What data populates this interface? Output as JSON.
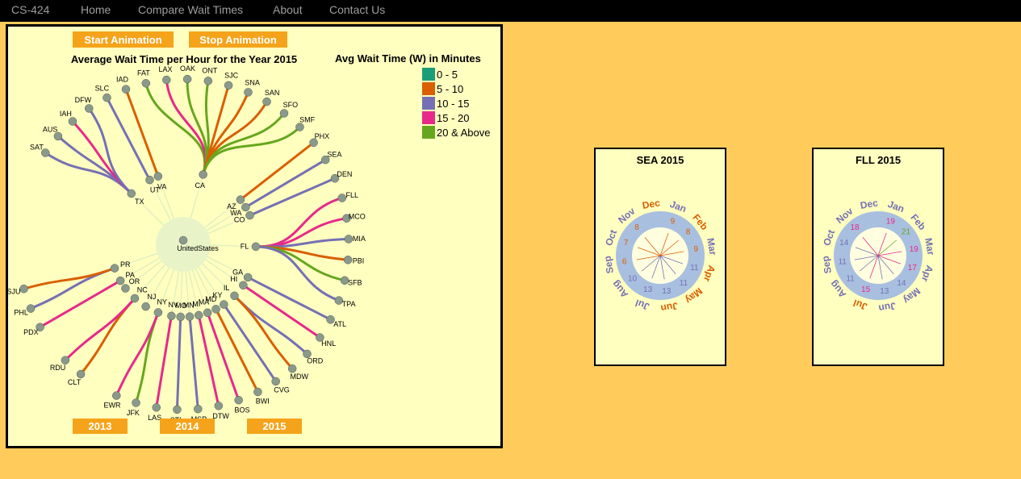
{
  "nav": {
    "brand": "CS-424",
    "items": [
      "Home",
      "Compare Wait Times",
      "About",
      "Contact Us"
    ]
  },
  "controls": {
    "start_label": "Start Animation",
    "stop_label": "Stop Animation",
    "years": [
      "2013",
      "2014",
      "2015"
    ]
  },
  "chart_title": "Average Wait Time per Hour for the Year 2015",
  "legend": {
    "title": "Avg Wait Time (W) in Minutes",
    "items": [
      {
        "label": "0 - 5",
        "color": "#1b9e77"
      },
      {
        "label": "5 - 10",
        "color": "#d95f02"
      },
      {
        "label": "10 - 15",
        "color": "#7570b3"
      },
      {
        "label": "15 - 20",
        "color": "#e7298a"
      },
      {
        "label": "20 & Above",
        "color": "#66a61e"
      }
    ]
  },
  "root_label": "UnitedStates",
  "states": [
    {
      "name": "TX",
      "airports": [
        [
          "SAT",
          2
        ],
        [
          "AUS",
          2
        ],
        [
          "IAH",
          3
        ],
        [
          "DFW",
          2
        ]
      ]
    },
    {
      "name": "UT",
      "airports": [
        [
          "SLC",
          2
        ]
      ]
    },
    {
      "name": "VA",
      "airports": [
        [
          "IAD",
          1
        ]
      ]
    },
    {
      "name": "CA",
      "airports": [
        [
          "FAT",
          4
        ],
        [
          "LAX",
          3
        ],
        [
          "OAK",
          4
        ],
        [
          "ONT",
          4
        ],
        [
          "SJC",
          1
        ],
        [
          "SNA",
          1
        ],
        [
          "SAN",
          1
        ],
        [
          "SFO",
          4
        ],
        [
          "SMF",
          4
        ]
      ]
    },
    {
      "name": "AZ",
      "airports": [
        [
          "PHX",
          1
        ]
      ]
    },
    {
      "name": "WA",
      "airports": [
        [
          "SEA",
          2
        ]
      ]
    },
    {
      "name": "CO",
      "airports": [
        [
          "DEN",
          2
        ]
      ]
    },
    {
      "name": "FL",
      "airports": [
        [
          "FLL",
          3
        ],
        [
          "MCO",
          3
        ],
        [
          "MIA",
          2
        ],
        [
          "PBI",
          1
        ],
        [
          "SFB",
          4
        ],
        [
          "TPA",
          2
        ]
      ]
    },
    {
      "name": "GA",
      "airports": [
        [
          "ATL",
          2
        ]
      ]
    },
    {
      "name": "HI",
      "airports": [
        [
          "HNL",
          3
        ]
      ]
    },
    {
      "name": "IL",
      "airports": [
        [
          "ORD",
          2
        ],
        [
          "MDW",
          1
        ]
      ]
    },
    {
      "name": "KY",
      "airports": [
        [
          "CVG",
          2
        ]
      ]
    },
    {
      "name": "MD",
      "airports": [
        [
          "BWI",
          1
        ]
      ]
    },
    {
      "name": "MA",
      "airports": [
        [
          "BOS",
          3
        ]
      ]
    },
    {
      "name": "MI",
      "airports": [
        [
          "DTW",
          3
        ]
      ]
    },
    {
      "name": "MN",
      "airports": [
        [
          "MSP",
          2
        ]
      ]
    },
    {
      "name": "MO",
      "airports": [
        [
          "STL",
          2
        ]
      ]
    },
    {
      "name": "NV",
      "airports": [
        [
          "LAS",
          3
        ]
      ]
    },
    {
      "name": "NY",
      "airports": [
        [
          "JFK",
          4
        ],
        [
          "EWR",
          3
        ]
      ]
    },
    {
      "name": "NJ",
      "airports": []
    },
    {
      "name": "NC",
      "airports": [
        [
          "CLT",
          1
        ],
        [
          "RDU",
          3
        ]
      ]
    },
    {
      "name": "OR",
      "airports": []
    },
    {
      "name": "PA",
      "airports": [
        [
          "PDX",
          3
        ]
      ]
    },
    {
      "name": "PR",
      "airports": [
        [
          "PHL",
          2
        ],
        [
          "SJU",
          1
        ]
      ]
    }
  ],
  "cards": [
    {
      "title": "SEA 2015",
      "months": [
        "Jan",
        "Feb",
        "Mar",
        "Apr",
        "May",
        "Jun",
        "Jul",
        "Aug",
        "Sep",
        "Oct",
        "Nov",
        "Dec"
      ],
      "values": [
        9,
        8,
        9,
        11,
        11,
        13,
        13,
        10,
        6,
        7,
        8,
        null
      ],
      "month_colors": [
        "#7570b3",
        "#d95f02",
        "#7570b3",
        "#d95f02",
        "#d95f02",
        "#d95f02",
        "#7570b3",
        "#7570b3",
        "#7570b3",
        "#7570b3",
        "#7570b3",
        "#d95f02"
      ]
    },
    {
      "title": "FLL 2015",
      "months": [
        "Jan",
        "Feb",
        "Mar",
        "Apr",
        "May",
        "Jun",
        "Jul",
        "Aug",
        "Sep",
        "Oct",
        "Nov",
        "Dec"
      ],
      "values": [
        19,
        21,
        19,
        17,
        14,
        13,
        15,
        11,
        11,
        14,
        18,
        null
      ],
      "month_colors": [
        "#7570b3",
        "#7570b3",
        "#7570b3",
        "#7570b3",
        "#7570b3",
        "#7570b3",
        "#d95f02",
        "#7570b3",
        "#7570b3",
        "#7570b3",
        "#7570b3",
        "#7570b3"
      ]
    }
  ]
}
